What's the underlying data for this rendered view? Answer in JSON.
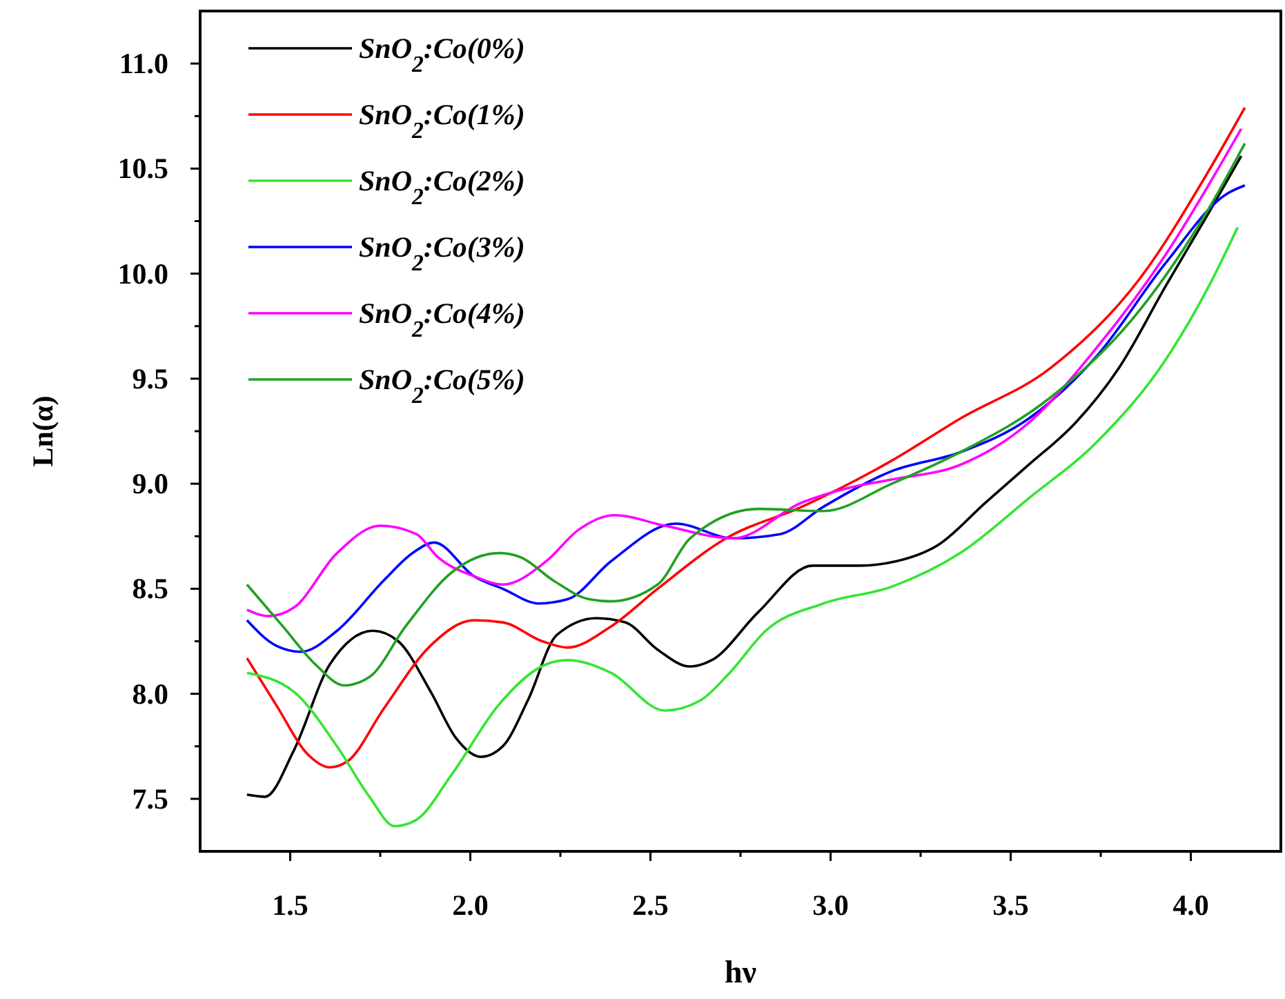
{
  "chart_data": {
    "type": "line",
    "xlabel": "hν",
    "ylabel": "Ln(α)",
    "xlim": [
      1.25,
      4.25
    ],
    "ylim": [
      7.25,
      11.25
    ],
    "xticks": [
      {
        "value": 1.5,
        "label": "1.5"
      },
      {
        "value": 1.75,
        "label": null
      },
      {
        "value": 2,
        "label": "2.0"
      },
      {
        "value": 2.25,
        "label": null
      },
      {
        "value": 2.5,
        "label": "2.5"
      },
      {
        "value": 2.75,
        "label": null
      },
      {
        "value": 3,
        "label": "3.0"
      },
      {
        "value": 3.25,
        "label": null
      },
      {
        "value": 3.5,
        "label": "3.5"
      },
      {
        "value": 3.75,
        "label": null
      },
      {
        "value": 4,
        "label": "4.0"
      }
    ],
    "yticks": [
      {
        "value": 7.5,
        "label": "7.5"
      },
      {
        "value": 7.75,
        "label": null
      },
      {
        "value": 8,
        "label": "8.0"
      },
      {
        "value": 8.25,
        "label": null
      },
      {
        "value": 8.5,
        "label": "8.5"
      },
      {
        "value": 8.75,
        "label": null
      },
      {
        "value": 9,
        "label": "9.0"
      },
      {
        "value": 9.25,
        "label": null
      },
      {
        "value": 9.5,
        "label": "9.5"
      },
      {
        "value": 9.75,
        "label": null
      },
      {
        "value": 10,
        "label": "10.0"
      },
      {
        "value": 10.25,
        "label": null
      },
      {
        "value": 10.5,
        "label": "10.5"
      },
      {
        "value": 10.75,
        "label": null
      },
      {
        "value": 11,
        "label": "11.0"
      }
    ],
    "legend": "top left",
    "grid": false,
    "marker": "none",
    "line_style": "solid",
    "series": [
      {
        "name": "SnO$_{2}$:Co(0%)",
        "color": "#000000",
        "x": [
          1.38,
          1.43,
          1.51,
          1.61,
          1.73,
          1.8,
          1.89,
          1.96,
          2.03,
          2.09,
          2.16,
          2.24,
          2.35,
          2.43,
          2.52,
          2.61,
          2.67,
          2.8,
          2.95,
          3.08,
          3.18,
          3.3,
          3.43,
          3.55,
          3.68,
          3.8,
          3.93,
          4.05,
          4.14
        ],
        "values": [
          7.52,
          7.51,
          7.73,
          8.14,
          8.3,
          8.25,
          8.01,
          7.79,
          7.7,
          7.75,
          7.97,
          8.28,
          8.36,
          8.34,
          8.21,
          8.13,
          8.16,
          8.39,
          8.61,
          8.61,
          8.63,
          8.71,
          8.91,
          9.09,
          9.29,
          9.55,
          9.94,
          10.29,
          10.56
        ]
      },
      {
        "name": "SnO$_{2}$:Co(1%)",
        "color": "#ff0000",
        "x": [
          1.38,
          1.46,
          1.55,
          1.61,
          1.66,
          1.76,
          1.89,
          2.01,
          2.09,
          2.2,
          2.27,
          2.39,
          2.52,
          2.71,
          2.92,
          3.17,
          3.36,
          3.61,
          3.86,
          4.05,
          4.15
        ],
        "values": [
          8.17,
          7.95,
          7.71,
          7.65,
          7.68,
          7.93,
          8.23,
          8.35,
          8.34,
          8.25,
          8.22,
          8.32,
          8.5,
          8.74,
          8.89,
          9.11,
          9.31,
          9.55,
          9.98,
          10.49,
          10.79
        ]
      },
      {
        "name": "SnO$_{2}$:Co(2%)",
        "color": "#33e633",
        "x": [
          1.38,
          1.51,
          1.63,
          1.72,
          1.79,
          1.85,
          1.95,
          2.08,
          2.21,
          2.27,
          2.39,
          2.54,
          2.64,
          2.72,
          2.82,
          2.98,
          3.17,
          3.36,
          3.55,
          3.74,
          3.93,
          4.05,
          4.13
        ],
        "values": [
          8.1,
          8.01,
          7.75,
          7.51,
          7.37,
          7.4,
          7.62,
          7.95,
          8.14,
          8.16,
          8.1,
          7.92,
          7.97,
          8.1,
          8.3,
          8.43,
          8.51,
          8.67,
          8.93,
          9.2,
          9.59,
          9.94,
          10.22
        ]
      },
      {
        "name": "SnO$_{2}$:Co(3%)",
        "color": "#0000ff",
        "x": [
          1.38,
          1.46,
          1.53,
          1.63,
          1.76,
          1.84,
          1.9,
          2.01,
          2.09,
          2.19,
          2.27,
          2.39,
          2.57,
          2.73,
          2.86,
          2.98,
          3.17,
          3.36,
          3.55,
          3.74,
          3.93,
          4.1,
          4.15
        ],
        "values": [
          8.35,
          8.23,
          8.2,
          8.3,
          8.54,
          8.67,
          8.72,
          8.56,
          8.5,
          8.43,
          8.45,
          8.63,
          8.81,
          8.74,
          8.76,
          8.89,
          9.06,
          9.15,
          9.31,
          9.61,
          10.05,
          10.38,
          10.42
        ]
      },
      {
        "name": "SnO$_{2}$:Co(4%)",
        "color": "#ff00ff",
        "x": [
          1.38,
          1.44,
          1.51,
          1.63,
          1.75,
          1.85,
          1.91,
          2.01,
          2.09,
          2.21,
          2.3,
          2.4,
          2.54,
          2.73,
          2.92,
          3.05,
          3.17,
          3.36,
          3.55,
          3.74,
          3.93,
          4.11,
          4.14
        ],
        "values": [
          8.4,
          8.37,
          8.41,
          8.67,
          8.8,
          8.76,
          8.65,
          8.56,
          8.52,
          8.63,
          8.78,
          8.85,
          8.8,
          8.74,
          8.91,
          8.98,
          9.02,
          9.09,
          9.29,
          9.65,
          10.09,
          10.6,
          10.69
        ]
      },
      {
        "name": "SnO$_{2}$:Co(5%)",
        "color": "#22a022",
        "x": [
          1.38,
          1.48,
          1.57,
          1.65,
          1.72,
          1.82,
          1.95,
          2.08,
          2.14,
          2.23,
          2.33,
          2.39,
          2.52,
          2.61,
          2.8,
          2.98,
          3.17,
          3.36,
          3.61,
          3.86,
          4.05,
          4.15
        ],
        "values": [
          8.52,
          8.32,
          8.14,
          8.04,
          8.08,
          8.32,
          8.58,
          8.67,
          8.65,
          8.54,
          8.45,
          8.44,
          8.52,
          8.74,
          8.88,
          8.87,
          9.0,
          9.15,
          9.41,
          9.83,
          10.31,
          10.62
        ]
      }
    ]
  }
}
